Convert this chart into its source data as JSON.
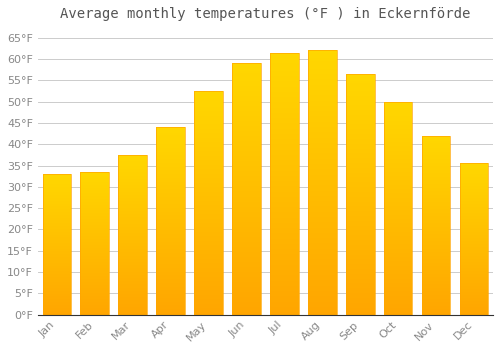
{
  "title": "Average monthly temperatures (°F ) in Eckernförde",
  "months": [
    "Jan",
    "Feb",
    "Mar",
    "Apr",
    "May",
    "Jun",
    "Jul",
    "Aug",
    "Sep",
    "Oct",
    "Nov",
    "Dec"
  ],
  "values": [
    33,
    33.5,
    37.5,
    44,
    52.5,
    59,
    61.5,
    62,
    56.5,
    50,
    42,
    35.5
  ],
  "bar_color_top": "#FFD700",
  "bar_color_bottom": "#FFA500",
  "background_color": "#FFFFFF",
  "grid_color": "#CCCCCC",
  "ylim": [
    0,
    67
  ],
  "yticks": [
    0,
    5,
    10,
    15,
    20,
    25,
    30,
    35,
    40,
    45,
    50,
    55,
    60,
    65
  ],
  "tick_label_color": "#888888",
  "title_fontsize": 10,
  "tick_fontsize": 8,
  "bar_width": 0.75
}
